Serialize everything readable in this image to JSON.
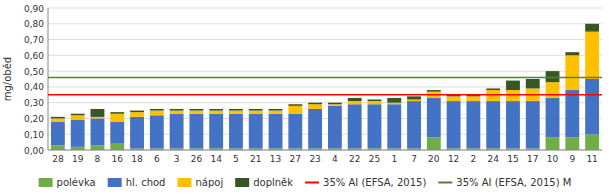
{
  "chart_data": {
    "type": "bar",
    "stacked": true,
    "grid": true,
    "legend": "bottom",
    "y_label": "mg/oběd",
    "categories": [
      "28",
      "19",
      "8",
      "16",
      "18",
      "6",
      "3",
      "26",
      "14",
      "5",
      "21",
      "13",
      "27",
      "23",
      "4",
      "22",
      "25",
      "1",
      "7",
      "20",
      "12",
      "2",
      "24",
      "15",
      "17",
      "10",
      "9",
      "11"
    ],
    "series": [
      {
        "name": "polévka",
        "color": "#70AD47",
        "values": [
          0.03,
          0.02,
          0.03,
          0.04,
          0.01,
          0.01,
          0.01,
          0.01,
          0.01,
          0.01,
          0.01,
          0.01,
          0.01,
          0.01,
          0.01,
          0.01,
          0.01,
          0.01,
          0.01,
          0.08,
          0.01,
          0.01,
          0.01,
          0.01,
          0.01,
          0.08,
          0.08,
          0.1
        ]
      },
      {
        "name": "hl. chod",
        "color": "#4472C4",
        "values": [
          0.15,
          0.17,
          0.17,
          0.14,
          0.2,
          0.21,
          0.22,
          0.22,
          0.22,
          0.22,
          0.22,
          0.22,
          0.22,
          0.25,
          0.27,
          0.28,
          0.28,
          0.28,
          0.3,
          0.25,
          0.3,
          0.3,
          0.3,
          0.3,
          0.3,
          0.25,
          0.3,
          0.35
        ]
      },
      {
        "name": "nápoj",
        "color": "#FFC000",
        "values": [
          0.02,
          0.03,
          0.01,
          0.05,
          0.03,
          0.03,
          0.02,
          0.02,
          0.02,
          0.02,
          0.02,
          0.02,
          0.05,
          0.03,
          0.01,
          0.02,
          0.02,
          0.01,
          0.01,
          0.04,
          0.03,
          0.03,
          0.07,
          0.07,
          0.08,
          0.1,
          0.22,
          0.3
        ]
      },
      {
        "name": "doplněk",
        "color": "#375623",
        "values": [
          0.01,
          0.01,
          0.05,
          0.01,
          0.01,
          0.01,
          0.01,
          0.01,
          0.01,
          0.01,
          0.01,
          0.01,
          0.01,
          0.01,
          0.01,
          0.02,
          0.01,
          0.03,
          0.02,
          0.01,
          0.01,
          0.01,
          0.01,
          0.06,
          0.06,
          0.07,
          0.02,
          0.05
        ]
      }
    ],
    "reference_lines": [
      {
        "name": "35% AI (EFSA, 2015)",
        "color": "#FF0000",
        "value": 0.35
      },
      {
        "name": "35% AI (EFSA, 2015) M",
        "color": "#548235",
        "value": 0.46
      }
    ],
    "ylim": [
      0.0,
      0.9
    ],
    "yticks": [
      {
        "value": 0.0,
        "label": "0,00"
      },
      {
        "value": 0.1,
        "label": "0,10"
      },
      {
        "value": 0.2,
        "label": "0,20"
      },
      {
        "value": 0.3,
        "label": "0,30"
      },
      {
        "value": 0.4,
        "label": "0,40"
      },
      {
        "value": 0.5,
        "label": "0,50"
      },
      {
        "value": 0.6,
        "label": "0,60"
      },
      {
        "value": 0.7,
        "label": "0,70"
      },
      {
        "value": 0.8,
        "label": "0,80"
      },
      {
        "value": 0.9,
        "label": "0,90"
      }
    ]
  }
}
